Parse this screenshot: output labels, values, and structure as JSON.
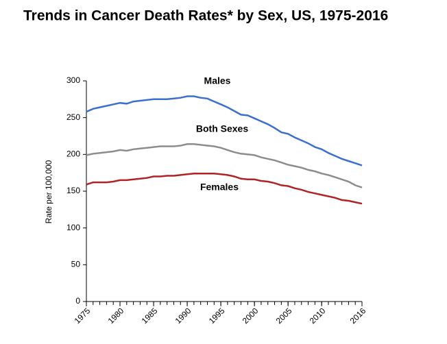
{
  "chart_data": {
    "type": "line",
    "title": "Trends in Cancer Death Rates* by Sex, US, 1975-2016",
    "y_label": "Rate per 100,000",
    "x": [
      1975,
      1976,
      1977,
      1978,
      1979,
      1980,
      1981,
      1982,
      1983,
      1984,
      1985,
      1986,
      1987,
      1988,
      1989,
      1990,
      1991,
      1992,
      1993,
      1994,
      1995,
      1996,
      1997,
      1998,
      1999,
      2000,
      2001,
      2002,
      2003,
      2004,
      2005,
      2006,
      2007,
      2008,
      2009,
      2010,
      2011,
      2012,
      2013,
      2014,
      2015,
      2016
    ],
    "series": [
      {
        "name": "Males",
        "color": "#3a6fcf",
        "values": [
          258,
          262,
          264,
          266,
          268,
          270,
          269,
          272,
          273,
          274,
          275,
          275,
          275,
          276,
          277,
          279,
          279,
          277,
          276,
          272,
          268,
          264,
          259,
          254,
          253,
          249,
          245,
          241,
          236,
          230,
          228,
          223,
          219,
          215,
          210,
          207,
          202,
          198,
          194,
          191,
          188,
          185
        ]
      },
      {
        "name": "Both Sexes",
        "color": "#8c8c8c",
        "values": [
          199,
          201,
          202,
          203,
          204,
          206,
          205,
          207,
          208,
          209,
          210,
          211,
          211,
          211,
          212,
          214,
          214,
          213,
          212,
          211,
          209,
          206,
          203,
          201,
          200,
          199,
          196,
          194,
          192,
          189,
          186,
          184,
          182,
          179,
          177,
          174,
          172,
          169,
          166,
          163,
          158,
          155
        ]
      },
      {
        "name": "Females",
        "color": "#b22222",
        "values": [
          159,
          162,
          162,
          162,
          163,
          165,
          165,
          166,
          167,
          168,
          170,
          170,
          171,
          171,
          172,
          173,
          174,
          174,
          174,
          174,
          173,
          172,
          170,
          167,
          166,
          166,
          164,
          163,
          161,
          158,
          157,
          154,
          152,
          149,
          147,
          145,
          143,
          141,
          138,
          137,
          135,
          133
        ]
      }
    ],
    "xlim": [
      1975,
      2016
    ],
    "xticks": [
      1975,
      1980,
      1985,
      1990,
      1995,
      2000,
      2005,
      2010,
      2016
    ],
    "ylim": [
      0,
      300
    ],
    "yticks": [
      0,
      50,
      100,
      150,
      200,
      250,
      300
    ],
    "grid": false
  }
}
